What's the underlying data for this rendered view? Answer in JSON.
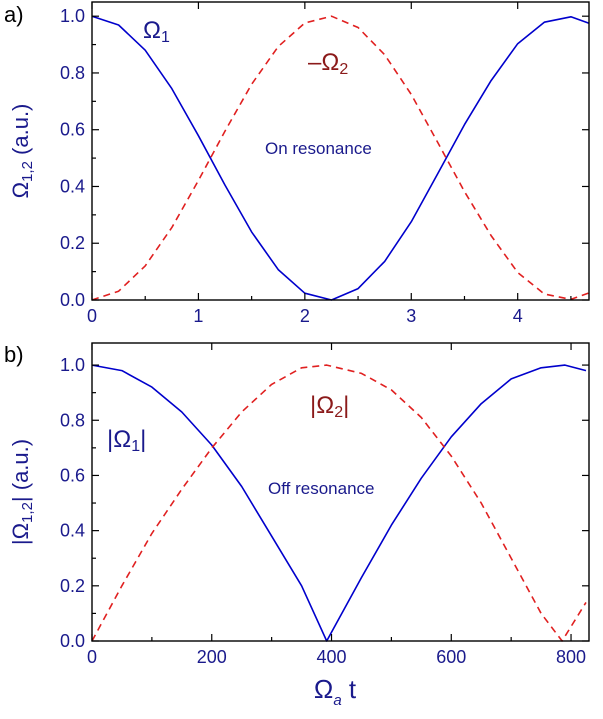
{
  "colors": {
    "series1": "#0000cc",
    "series2": "#e02020",
    "text": "#1a1a8c",
    "text2": "#8b1a1a"
  },
  "chart_data": [
    {
      "panel_label": "a)",
      "type": "line",
      "ylabel_main": "Ω",
      "ylabel_sub": "1,2",
      "ylabel_unit": " (a.u.)",
      "xlim": [
        0,
        4.67
      ],
      "ylim": [
        0,
        1.05
      ],
      "xticks": [
        0,
        1,
        2,
        3,
        4
      ],
      "xtick_labels": [
        "0",
        "1",
        "2",
        "3",
        "4"
      ],
      "yticks": [
        0,
        0.2,
        0.4,
        0.6,
        0.8,
        1.0
      ],
      "ytick_labels": [
        "0.0",
        "0.2",
        "0.4",
        "0.6",
        "0.8",
        "1.0"
      ],
      "annotation": "On resonance",
      "series": [
        {
          "name_main": "Ω",
          "name_sub": "1",
          "name_pre": "",
          "name_post": "",
          "style": "solid",
          "x": [
            0,
            0.25,
            0.5,
            0.75,
            1.0,
            1.25,
            1.5,
            1.75,
            2.0,
            2.25,
            2.5,
            2.75,
            3.0,
            3.25,
            3.5,
            3.75,
            4.0,
            4.25,
            4.5,
            4.67
          ],
          "y": [
            1.0,
            0.969,
            0.88,
            0.745,
            0.579,
            0.405,
            0.24,
            0.107,
            0.024,
            0.0,
            0.04,
            0.136,
            0.276,
            0.446,
            0.618,
            0.773,
            0.903,
            0.979,
            0.998,
            0.975
          ]
        },
        {
          "name_main": "Ω",
          "name_sub": "2",
          "name_pre": "–",
          "name_post": "",
          "style": "dashed",
          "x": [
            0,
            0.25,
            0.5,
            0.75,
            1.0,
            1.25,
            1.5,
            1.75,
            2.0,
            2.25,
            2.5,
            2.75,
            3.0,
            3.25,
            3.5,
            3.75,
            4.0,
            4.25,
            4.5,
            4.67
          ],
          "y": [
            0.0,
            0.031,
            0.12,
            0.255,
            0.421,
            0.595,
            0.76,
            0.893,
            0.976,
            1.0,
            0.96,
            0.864,
            0.724,
            0.554,
            0.382,
            0.227,
            0.097,
            0.021,
            0.002,
            0.025
          ]
        }
      ]
    },
    {
      "panel_label": "b)",
      "type": "line",
      "ylabel_main": "|Ω",
      "ylabel_sub": "1,2",
      "ylabel_unit": "| (a.u.)",
      "xlabel_main": "Ω",
      "xlabel_sub": "a",
      "xlabel_rest": " t",
      "xlim": [
        0,
        830
      ],
      "ylim": [
        0,
        1.08
      ],
      "xticks": [
        0,
        200,
        400,
        600,
        800
      ],
      "xtick_labels": [
        "0",
        "200",
        "400",
        "600",
        "800"
      ],
      "yticks": [
        0,
        0.2,
        0.4,
        0.6,
        0.8,
        1.0
      ],
      "ytick_labels": [
        "0.0",
        "0.2",
        "0.4",
        "0.6",
        "0.8",
        "1.0"
      ],
      "annotation": "Off resonance",
      "series": [
        {
          "name_main": "|Ω",
          "name_sub": "1",
          "name_pre": "",
          "name_post": "|",
          "style": "solid",
          "x": [
            0,
            50,
            100,
            150,
            200,
            250,
            300,
            350,
            392,
            450,
            500,
            550,
            600,
            650,
            700,
            750,
            790,
            825
          ],
          "y": [
            1.0,
            0.98,
            0.92,
            0.83,
            0.71,
            0.56,
            0.38,
            0.2,
            0.0,
            0.23,
            0.42,
            0.59,
            0.74,
            0.86,
            0.95,
            0.99,
            1.0,
            0.98
          ]
        },
        {
          "name_main": "|Ω",
          "name_sub": "2",
          "name_pre": "",
          "name_post": "|",
          "style": "dashed",
          "x": [
            0,
            50,
            100,
            150,
            200,
            250,
            300,
            350,
            392,
            450,
            500,
            550,
            600,
            650,
            700,
            750,
            785,
            825
          ],
          "y": [
            0.0,
            0.2,
            0.39,
            0.55,
            0.7,
            0.83,
            0.93,
            0.99,
            1.0,
            0.97,
            0.91,
            0.81,
            0.67,
            0.5,
            0.3,
            0.1,
            0.0,
            0.14
          ]
        }
      ]
    }
  ]
}
